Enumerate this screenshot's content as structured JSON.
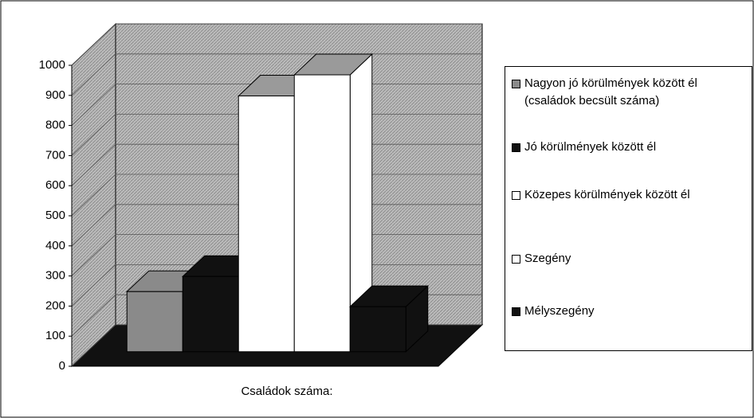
{
  "chart_data": {
    "type": "bar",
    "categories": [
      "Családok száma:"
    ],
    "series": [
      {
        "name": "Nagyon jó körülmények között él  (családok becsült száma)",
        "color": "#8a8a8a",
        "values": [
          200
        ]
      },
      {
        "name": "Jó körülmények között él",
        "color": "#111111",
        "values": [
          250
        ]
      },
      {
        "name": "Közepes körülmények között él",
        "color": "#ffffff",
        "values": [
          850
        ]
      },
      {
        "name": "Szegény",
        "color": "#ffffff",
        "values": [
          920
        ]
      },
      {
        "name": "Mélyszegény",
        "color": "#111111",
        "values": [
          150
        ]
      }
    ],
    "ylim": [
      0,
      1000
    ],
    "yticks": [
      0,
      100,
      200,
      300,
      400,
      500,
      600,
      700,
      800,
      900,
      1000
    ],
    "grid": true,
    "legend": "right"
  }
}
